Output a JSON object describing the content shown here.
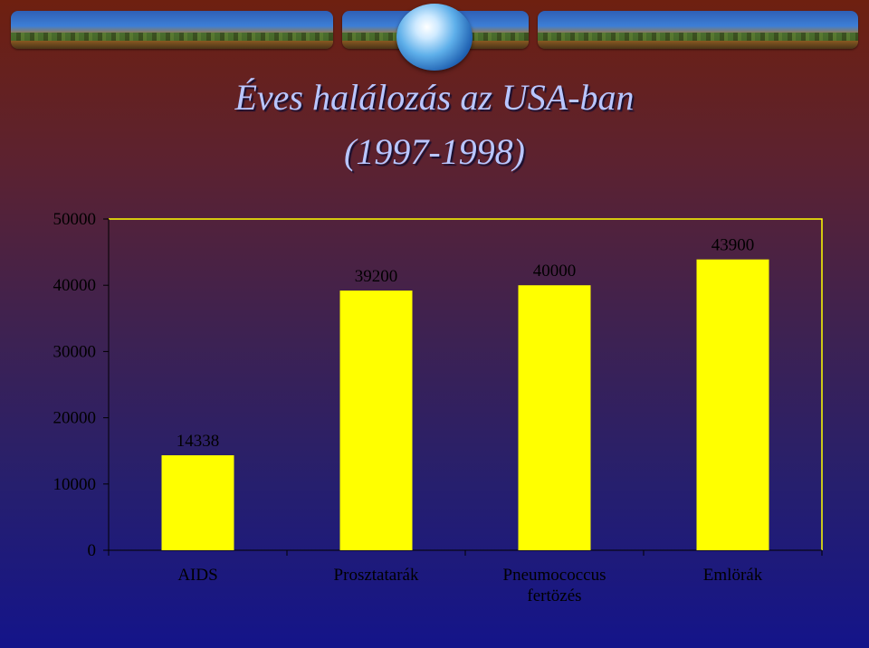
{
  "title_line1": "Éves halálozás az USA-ban",
  "title_line2": "(1997-1998)",
  "chart_data": {
    "type": "bar",
    "categories": [
      [
        "AIDS"
      ],
      [
        "Prosztatarák"
      ],
      [
        "Pneumococcus",
        "fertözés"
      ],
      [
        "Emlörák"
      ]
    ],
    "values": [
      14338,
      39200,
      40000,
      43900
    ],
    "data_labels": [
      "14338",
      "39200",
      "40000",
      "43900"
    ],
    "ylim": [
      0,
      50000
    ],
    "yticks": [
      0,
      10000,
      20000,
      30000,
      40000,
      50000
    ],
    "tick_labels": [
      "0",
      "10000",
      "20000",
      "30000",
      "40000",
      "50000"
    ],
    "colors": {
      "bar": "#ffff00",
      "text": "#000000",
      "axis": "#000000",
      "plot_border": "#ffff00"
    },
    "grid": false
  }
}
